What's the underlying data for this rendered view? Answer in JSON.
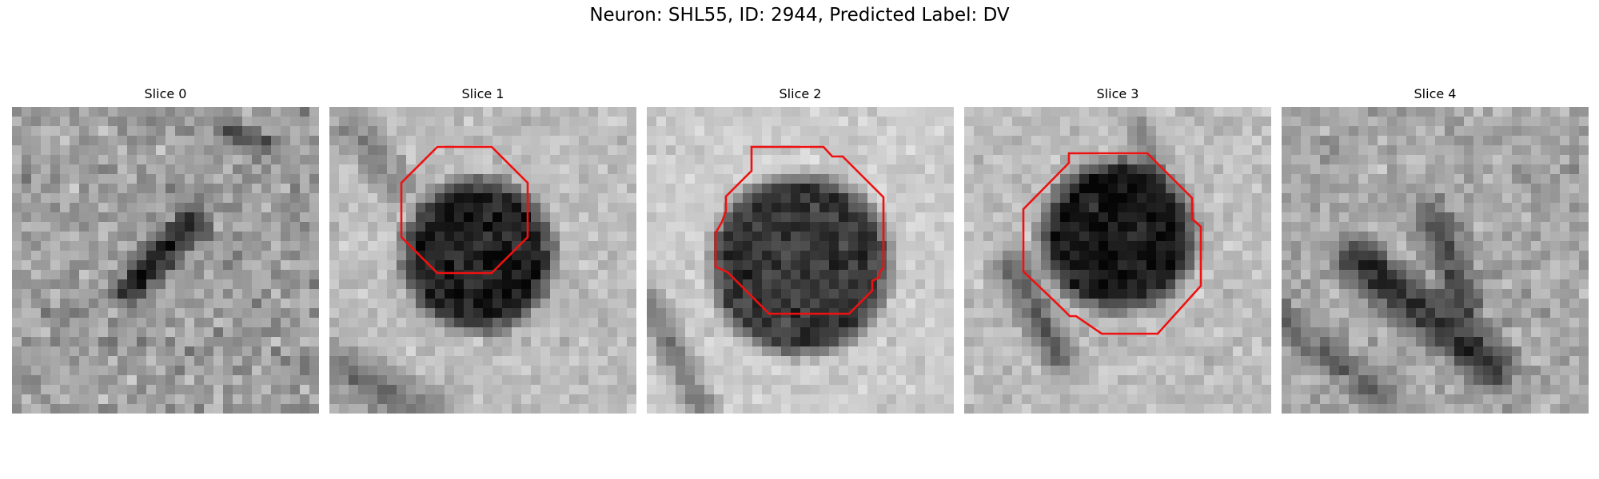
{
  "figure": {
    "title": "Neuron: SHL55, ID: 2944, Predicted Label: DV"
  },
  "slices": [
    {
      "title": "Slice 0",
      "has_contour": false
    },
    {
      "title": "Slice 1",
      "has_contour": true
    },
    {
      "title": "Slice 2",
      "has_contour": true
    },
    {
      "title": "Slice 3",
      "has_contour": true
    },
    {
      "title": "Slice 4",
      "has_contour": false
    }
  ],
  "colors": {
    "contour": "#ee1111",
    "background": "#ffffff"
  }
}
